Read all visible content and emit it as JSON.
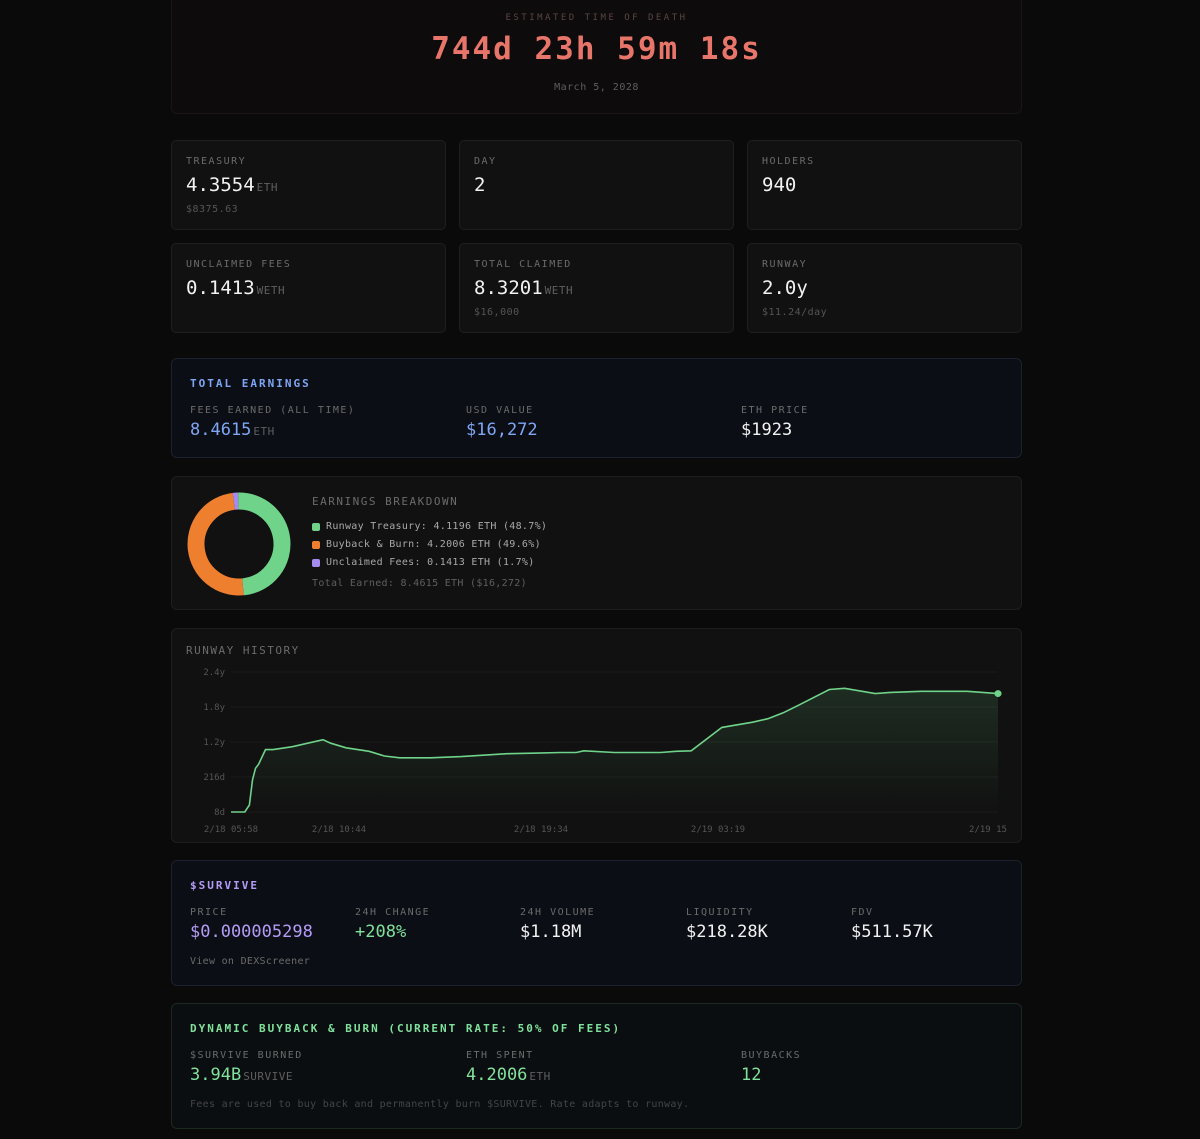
{
  "death": {
    "label": "ESTIMATED TIME OF DEATH",
    "countdown": "744d 23h 59m 18s",
    "date": "March 5, 2028"
  },
  "stats": {
    "treasury": {
      "label": "TREASURY",
      "value": "4.3554",
      "unit": "ETH",
      "sub": "$8375.63"
    },
    "day": {
      "label": "DAY",
      "value": "2"
    },
    "holders": {
      "label": "HOLDERS",
      "value": "940"
    },
    "unclaimed": {
      "label": "UNCLAIMED FEES",
      "value": "0.1413",
      "unit": "WETH"
    },
    "total_claimed": {
      "label": "TOTAL CLAIMED",
      "value": "8.3201",
      "unit": "WETH",
      "sub": "$16,000"
    },
    "runway": {
      "label": "RUNWAY",
      "value": "2.0y",
      "sub": "$11.24/day"
    }
  },
  "total_earnings": {
    "title": "TOTAL EARNINGS",
    "fees_label": "FEES EARNED (ALL TIME)",
    "fees_value": "8.4615",
    "fees_unit": "ETH",
    "usd_label": "USD VALUE",
    "usd_value": "$16,272",
    "price_label": "ETH PRICE",
    "price_value": "$1923"
  },
  "breakdown": {
    "title": "EARNINGS BREAKDOWN",
    "items": [
      {
        "label": "Runway Treasury: 4.1196 ETH (48.7%)",
        "pct": 48.7,
        "color": "#6fd38a"
      },
      {
        "label": "Buyback & Burn: 4.2006 ETH (49.6%)",
        "pct": 49.6,
        "color": "#ee7f2e"
      },
      {
        "label": "Unclaimed Fees: 0.1413 ETH (1.7%)",
        "pct": 1.7,
        "color": "#a58af0"
      }
    ],
    "total": "Total Earned: 8.4615 ETH ($16,272)"
  },
  "runway_history": {
    "title": "RUNWAY HISTORY",
    "y_ticks": [
      "2.4y",
      "1.8y",
      "1.2y",
      "216d",
      "8d"
    ],
    "x_ticks": [
      "2/18 05:58",
      "2/18 10:44",
      "2/18 19:34",
      "2/19 03:19",
      "2/19 15"
    ]
  },
  "chart_data": {
    "type": "area",
    "title": "RUNWAY HISTORY",
    "y_unit": "years",
    "ylim": [
      0,
      2.4
    ],
    "x_tick_labels": [
      "2/18 05:58",
      "2/18 10:44",
      "2/18 19:34",
      "2/19 03:19",
      "2/19 15"
    ],
    "series": [
      {
        "color": "#6fd38a",
        "x": [
          0.0,
          0.018,
          0.024,
          0.028,
          0.032,
          0.036,
          0.045,
          0.055,
          0.08,
          0.12,
          0.13,
          0.15,
          0.18,
          0.2,
          0.22,
          0.26,
          0.3,
          0.36,
          0.4,
          0.43,
          0.45,
          0.46,
          0.5,
          0.56,
          0.58,
          0.6,
          0.64,
          0.68,
          0.7,
          0.72,
          0.74,
          0.78,
          0.8,
          0.84,
          0.86,
          0.9,
          0.92,
          0.96,
          1.0
        ],
        "y": [
          0.0,
          0.0,
          0.12,
          0.55,
          0.75,
          0.82,
          1.07,
          1.07,
          1.12,
          1.24,
          1.18,
          1.1,
          1.04,
          0.96,
          0.93,
          0.93,
          0.95,
          1.0,
          1.01,
          1.02,
          1.02,
          1.05,
          1.02,
          1.02,
          1.04,
          1.05,
          1.45,
          1.54,
          1.6,
          1.7,
          1.83,
          2.1,
          2.12,
          2.03,
          2.05,
          2.07,
          2.07,
          2.07,
          2.03
        ]
      }
    ]
  },
  "survive": {
    "title": "$SURVIVE",
    "price_label": "PRICE",
    "price_value": "$0.000005298",
    "change_label": "24H CHANGE",
    "change_value": "+208%",
    "volume_label": "24H VOLUME",
    "volume_value": "$1.18M",
    "liquidity_label": "LIQUIDITY",
    "liquidity_value": "$218.28K",
    "fdv_label": "FDV",
    "fdv_value": "$511.57K",
    "link": "View on DEXScreener"
  },
  "buyback": {
    "title": "DYNAMIC BUYBACK & BURN (CURRENT RATE: 50% OF FEES)",
    "burned_label": "$SURVIVE BURNED",
    "burned_value": "3.94B",
    "burned_unit": "SURVIVE",
    "spent_label": "ETH SPENT",
    "spent_value": "4.2006",
    "spent_unit": "ETH",
    "count_label": "BUYBACKS",
    "count_value": "12",
    "note": "Fees are used to buy back and permanently burn $SURVIVE. Rate adapts to runway."
  },
  "colors": {
    "accent_red": "#e8756a",
    "accent_blue": "#7ea6f4",
    "accent_purple": "#b49cf5",
    "accent_green": "#7fe19b"
  }
}
